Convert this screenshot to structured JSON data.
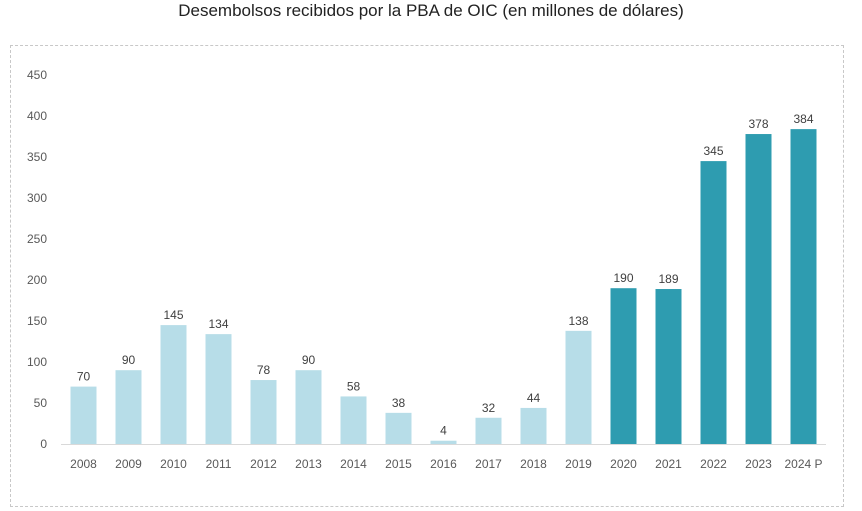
{
  "chart_data": {
    "type": "bar",
    "title": "Desembolsos recibidos por la PBA de OIC (en millones de dólares)",
    "xlabel": "",
    "ylabel": "",
    "ylim": [
      0,
      450
    ],
    "yticks": [
      0,
      50,
      100,
      150,
      200,
      250,
      300,
      350,
      400,
      450
    ],
    "grid": false,
    "legend": "none",
    "categories": [
      "2008",
      "2009",
      "2010",
      "2011",
      "2012",
      "2013",
      "2014",
      "2015",
      "2016",
      "2017",
      "2018",
      "2019",
      "2020",
      "2021",
      "2022",
      "2023",
      "2024 P"
    ],
    "values": [
      70,
      90,
      145,
      134,
      78,
      90,
      58,
      38,
      4,
      32,
      44,
      138,
      190,
      189,
      345,
      378,
      384
    ],
    "bar_colors": [
      "#b7dde8",
      "#b7dde8",
      "#b7dde8",
      "#b7dde8",
      "#b7dde8",
      "#b7dde8",
      "#b7dde8",
      "#b7dde8",
      "#b7dde8",
      "#b7dde8",
      "#b7dde8",
      "#b7dde8",
      "#2e9cb0",
      "#2e9cb0",
      "#2e9cb0",
      "#2e9cb0",
      "#2e9cb0"
    ],
    "data_labels": [
      "70",
      "90",
      "145",
      "134",
      "78",
      "90",
      "58",
      "38",
      "4",
      "32",
      "44",
      "138",
      "190",
      "189",
      "345",
      "378",
      "384"
    ]
  }
}
